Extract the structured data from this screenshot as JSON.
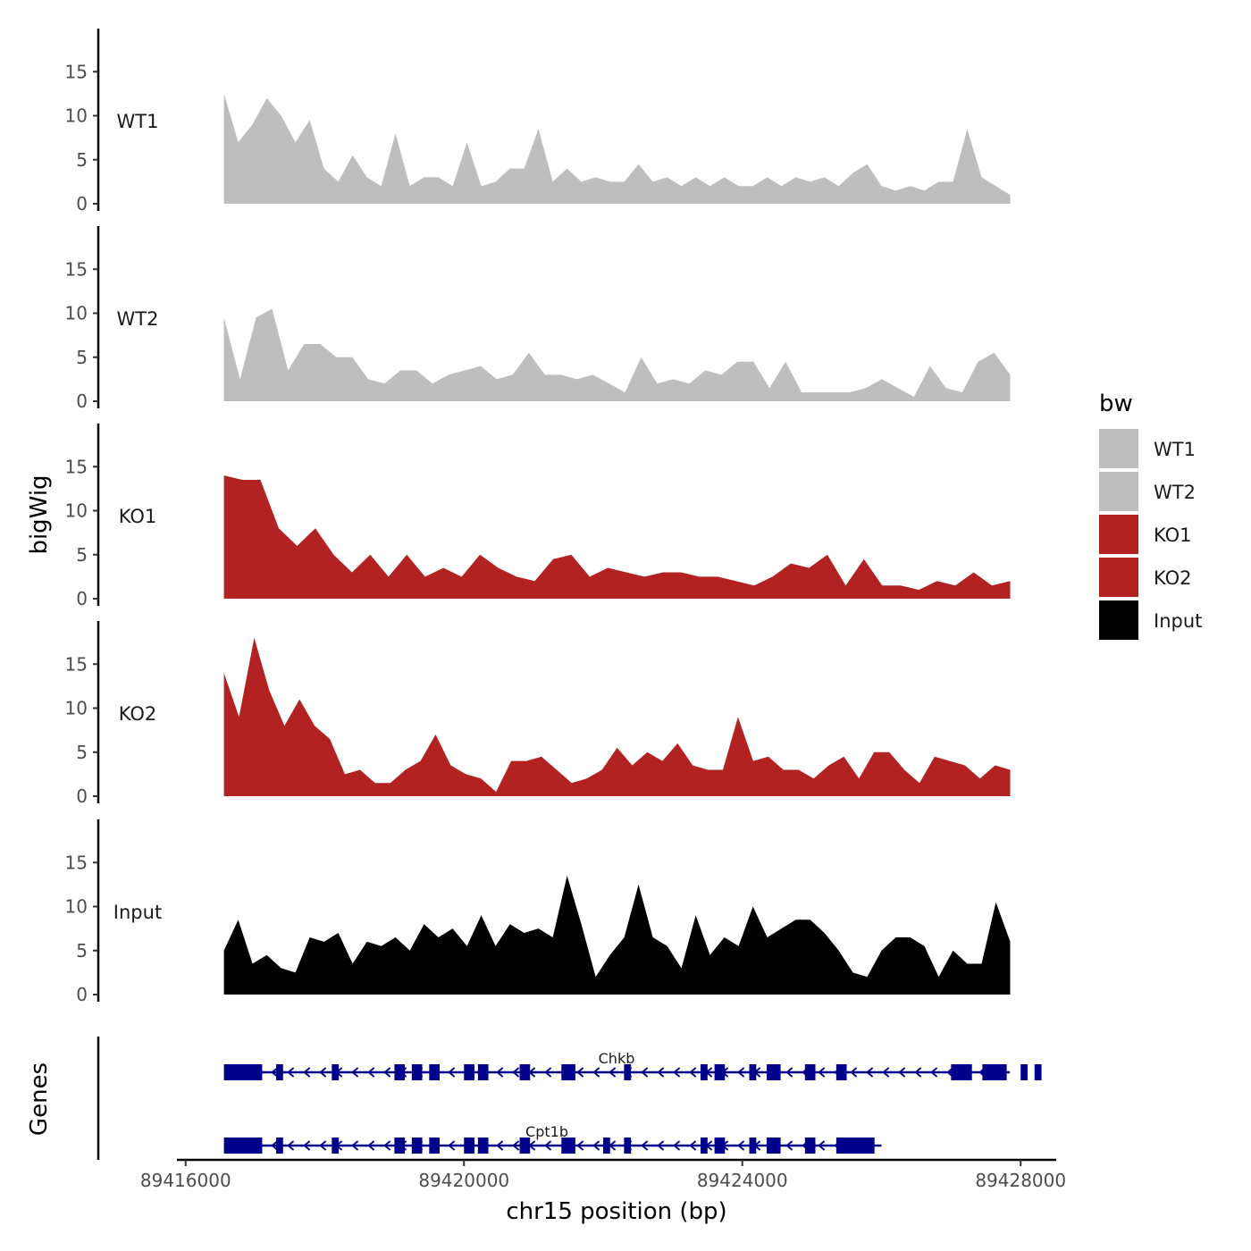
{
  "chart_data": {
    "type": "area",
    "title": "",
    "xlabel": "chr15 position (bp)",
    "ylabel": "bigWig",
    "genes_label": "Genes",
    "xlim": [
      89415900,
      89428100
    ],
    "ylim": [
      0,
      20
    ],
    "x_ticks": [
      89416000,
      89420000,
      89424000,
      89428000
    ],
    "x_tick_labels": [
      "89416000",
      "89420000",
      "89424000",
      "89428000"
    ],
    "y_ticks": [
      0,
      5,
      10,
      15
    ],
    "y_tick_labels": [
      "0",
      "5",
      "10",
      "15"
    ],
    "x_start": 89416550,
    "x_step": 200,
    "legend": {
      "title": "bw",
      "entries": [
        {
          "label": "WT1",
          "color": "#bebebe"
        },
        {
          "label": "WT2",
          "color": "#bebebe"
        },
        {
          "label": "KO1",
          "color": "#b22222"
        },
        {
          "label": "KO2",
          "color": "#b22222"
        },
        {
          "label": "Input",
          "color": "#000000"
        }
      ]
    },
    "series": [
      {
        "name": "WT1",
        "color": "#bebebe",
        "values": [
          12.5,
          7,
          9,
          12,
          10,
          7,
          9.5,
          4,
          2.5,
          5.5,
          3,
          2,
          8,
          2,
          3,
          3,
          2,
          7,
          2,
          2.5,
          4,
          4,
          8.5,
          2.5,
          4,
          2.5,
          3,
          2.5,
          2.5,
          4.5,
          2.5,
          3,
          2,
          3,
          2,
          3,
          2,
          2,
          3,
          2,
          3,
          2.5,
          3,
          2,
          3.5,
          4.5,
          2,
          1.5,
          2,
          1.5,
          2.5,
          2.5,
          8.5,
          3,
          2,
          1
        ]
      },
      {
        "name": "WT2",
        "color": "#bebebe",
        "values": [
          9.5,
          2.5,
          9.5,
          10.5,
          3.5,
          6.5,
          6.5,
          5,
          5,
          2.5,
          2,
          3.5,
          3.5,
          2,
          3,
          3.5,
          4,
          2.5,
          3,
          5.5,
          3,
          3,
          2.5,
          3,
          2,
          1,
          5,
          2,
          2.5,
          2,
          3.5,
          3,
          4.5,
          4.5,
          1.5,
          4.5,
          1,
          1,
          1,
          1,
          1.5,
          2.5,
          1.5,
          0.5,
          4,
          1.5,
          1,
          4.5,
          5.5,
          3
        ]
      },
      {
        "name": "KO1",
        "color": "#b22222",
        "values": [
          14,
          13.5,
          13.5,
          8,
          6,
          8,
          5,
          3,
          5,
          2.5,
          5,
          2.5,
          3.5,
          2.5,
          5,
          3.5,
          2.5,
          2,
          4.5,
          5,
          2.5,
          3.5,
          3,
          2.5,
          3,
          3,
          2.5,
          2.5,
          2,
          1.5,
          2.5,
          4,
          3.5,
          5,
          1.5,
          4.5,
          1.5,
          1.5,
          1,
          2,
          1.5,
          3,
          1.5,
          2
        ]
      },
      {
        "name": "KO2",
        "color": "#b22222",
        "values": [
          14,
          9,
          18,
          12,
          8,
          11,
          8,
          6.5,
          2.5,
          3,
          1.5,
          1.5,
          3,
          4,
          7,
          3.5,
          2.5,
          2,
          0.5,
          4,
          4,
          4.5,
          3,
          1.5,
          2,
          3,
          5.5,
          3.5,
          5,
          4,
          6,
          3.5,
          3,
          3,
          9,
          4,
          4.5,
          3,
          3,
          2,
          3.5,
          4.5,
          2,
          5,
          5,
          3,
          1.5,
          4.5,
          4,
          3.5,
          2,
          3.5,
          3
        ]
      },
      {
        "name": "Input",
        "color": "#000000",
        "values": [
          5,
          8.5,
          3.5,
          4.5,
          3,
          2.5,
          6.5,
          6,
          7,
          3.5,
          6,
          5.5,
          6.5,
          5,
          8,
          6.5,
          7.5,
          5.5,
          9,
          5.5,
          8,
          7,
          7.5,
          6.5,
          13.5,
          8,
          2,
          4.5,
          6.5,
          12.5,
          6.5,
          5.5,
          3,
          9,
          4.5,
          6.5,
          5.5,
          10,
          6.5,
          7.5,
          8.5,
          8.5,
          7,
          5,
          2.5,
          2,
          5,
          6.5,
          6.5,
          5.5,
          2,
          5,
          3.5,
          3.5,
          10.5,
          6
        ]
      }
    ],
    "genes": [
      {
        "name": "Chkb",
        "start": 89416550,
        "end": 89428000,
        "strand": "-",
        "exons": [
          [
            89416550,
            89417100
          ],
          [
            89417300,
            89417400
          ],
          [
            89418100,
            89418200
          ],
          [
            89419000,
            89419150
          ],
          [
            89419250,
            89419400
          ],
          [
            89419500,
            89419650
          ],
          [
            89420000,
            89420150
          ],
          [
            89420200,
            89420350
          ],
          [
            89420800,
            89420950
          ],
          [
            89421400,
            89421600
          ],
          [
            89422300,
            89422400
          ],
          [
            89423400,
            89423500
          ],
          [
            89423600,
            89423750
          ],
          [
            89424100,
            89424200
          ],
          [
            89424350,
            89424550
          ],
          [
            89424900,
            89425050
          ],
          [
            89425350,
            89425500
          ],
          [
            89427000,
            89427300
          ],
          [
            89427450,
            89427800
          ],
          [
            89428000,
            89428100
          ],
          [
            89428200,
            89428300
          ]
        ]
      },
      {
        "name": "Cpt1b",
        "start": 89416550,
        "end": 89426000,
        "strand": "-",
        "exons": [
          [
            89416550,
            89417100
          ],
          [
            89417300,
            89417400
          ],
          [
            89418100,
            89418200
          ],
          [
            89419000,
            89419150
          ],
          [
            89419250,
            89419400
          ],
          [
            89419500,
            89419650
          ],
          [
            89420000,
            89420150
          ],
          [
            89420200,
            89420350
          ],
          [
            89420800,
            89420950
          ],
          [
            89421400,
            89421600
          ],
          [
            89422000,
            89422100
          ],
          [
            89422300,
            89422400
          ],
          [
            89423400,
            89423500
          ],
          [
            89423600,
            89423750
          ],
          [
            89424100,
            89424200
          ],
          [
            89424350,
            89424550
          ],
          [
            89424900,
            89425050
          ],
          [
            89425350,
            89425900
          ]
        ]
      }
    ]
  }
}
